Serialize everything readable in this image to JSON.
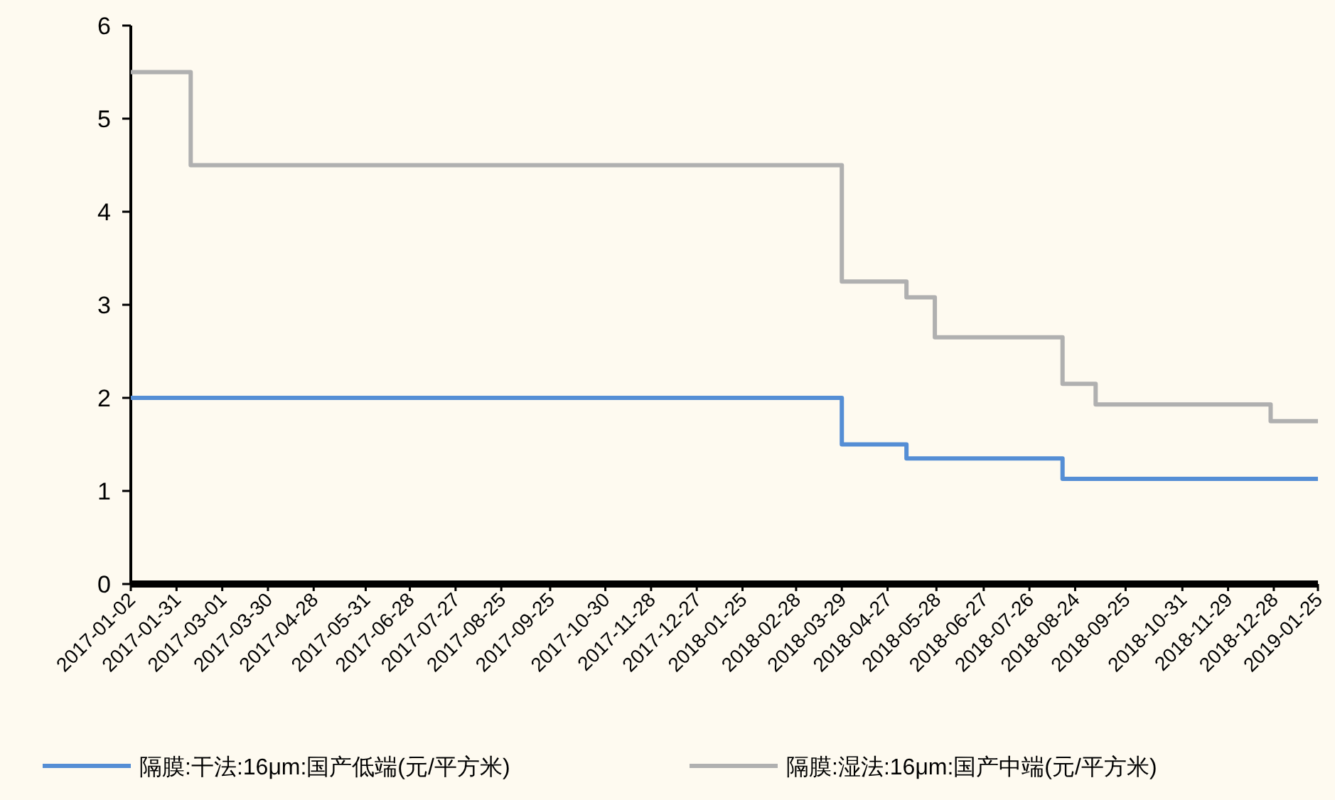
{
  "chart_data": {
    "type": "step",
    "x": [
      "2017-01-02",
      "2017-02-09",
      "2018-03-29",
      "2018-05-09",
      "2018-05-27",
      "2018-08-16",
      "2018-09-06",
      "2018-12-26",
      "2019-01-25"
    ],
    "series": [
      {
        "name": "隔膜:干法:16μm:国产低端(元/平方米)",
        "color": "#558ed5",
        "values": [
          2,
          2,
          1.5,
          1.35,
          1.35,
          1.13,
          1.13,
          1.13,
          1.13
        ]
      },
      {
        "name": "隔膜:湿法:16μm:国产中端(元/平方米)",
        "color": "#b0b0b0",
        "values": [
          5.5,
          4.5,
          3.25,
          3.08,
          2.65,
          2.15,
          1.93,
          1.75,
          1.75
        ]
      }
    ],
    "xlim": [
      "2017-01-02",
      "2019-01-25"
    ],
    "xticks": [
      "2017-01-02",
      "2017-01-31",
      "2017-03-01",
      "2017-03-30",
      "2017-04-28",
      "2017-05-31",
      "2017-06-28",
      "2017-07-27",
      "2017-08-25",
      "2017-09-25",
      "2017-10-30",
      "2017-11-28",
      "2017-12-27",
      "2018-01-25",
      "2018-02-28",
      "2018-03-29",
      "2018-04-27",
      "2018-05-28",
      "2018-06-27",
      "2018-07-26",
      "2018-08-24",
      "2018-09-25",
      "2018-10-31",
      "2018-11-29",
      "2018-12-28",
      "2019-01-25"
    ],
    "ylim": [
      0,
      6
    ],
    "yticks": [
      0,
      1,
      2,
      3,
      4,
      5,
      6
    ],
    "grid": false,
    "legend": "bottom"
  }
}
